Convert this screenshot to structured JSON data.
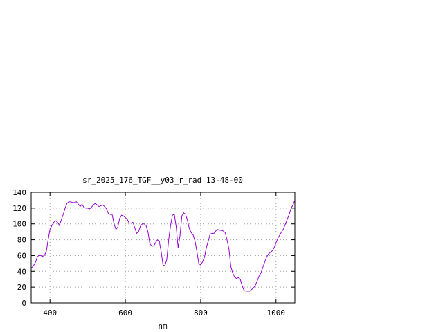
{
  "chart_data": {
    "type": "line",
    "title": "sr_2025_176_TGF__y03_r_rad 13-48-00",
    "xlabel": "nm",
    "ylabel": "",
    "xlim": [
      350,
      1050
    ],
    "ylim": [
      0,
      140
    ],
    "xticks": [
      400,
      600,
      800,
      1000
    ],
    "yticks": [
      0,
      20,
      40,
      60,
      80,
      100,
      120,
      140
    ],
    "grid": true,
    "series": [
      {
        "color": "#9400d3",
        "x": [
          350,
          356,
          362,
          366,
          370,
          375,
          380,
          385,
          390,
          395,
          400,
          405,
          410,
          415,
          420,
          425,
          430,
          435,
          440,
          445,
          450,
          455,
          460,
          465,
          470,
          475,
          480,
          485,
          490,
          495,
          500,
          505,
          510,
          515,
          520,
          525,
          530,
          535,
          540,
          545,
          550,
          555,
          560,
          565,
          570,
          575,
          580,
          585,
          590,
          595,
          600,
          605,
          610,
          615,
          620,
          625,
          630,
          635,
          640,
          645,
          650,
          655,
          660,
          665,
          670,
          675,
          680,
          685,
          690,
          695,
          700,
          705,
          710,
          715,
          720,
          725,
          730,
          735,
          740,
          745,
          750,
          755,
          760,
          765,
          770,
          775,
          780,
          785,
          790,
          795,
          800,
          805,
          810,
          815,
          820,
          825,
          830,
          835,
          840,
          845,
          850,
          855,
          860,
          865,
          870,
          875,
          880,
          885,
          890,
          895,
          900,
          905,
          910,
          915,
          920,
          925,
          930,
          935,
          940,
          945,
          950,
          955,
          960,
          965,
          970,
          975,
          980,
          985,
          990,
          995,
          1000,
          1005,
          1010,
          1015,
          1020,
          1025,
          1030,
          1035,
          1040,
          1045,
          1050
        ],
        "y": [
          44,
          47,
          52,
          58,
          60,
          60,
          59,
          60,
          65,
          80,
          93,
          98,
          102,
          104,
          102,
          98,
          105,
          112,
          120,
          126,
          128,
          128,
          127,
          127,
          128,
          125,
          122,
          125,
          121,
          120,
          120,
          119,
          121,
          124,
          126,
          124,
          122,
          123,
          124,
          122,
          119,
          113,
          112,
          112,
          100,
          93,
          96,
          107,
          111,
          110,
          108,
          106,
          101,
          101,
          102,
          95,
          88,
          90,
          97,
          100,
          100,
          98,
          90,
          75,
          72,
          72,
          76,
          80,
          78,
          65,
          48,
          47,
          55,
          80,
          98,
          111,
          112,
          96,
          70,
          85,
          110,
          114,
          112,
          104,
          94,
          89,
          86,
          78,
          65,
          50,
          48,
          52,
          58,
          70,
          78,
          87,
          88,
          88,
          91,
          93,
          92,
          92,
          91,
          89,
          80,
          68,
          46,
          38,
          33,
          31,
          32,
          30,
          22,
          16,
          15,
          15,
          15,
          17,
          19,
          22,
          28,
          34,
          38,
          45,
          52,
          58,
          62,
          64,
          66,
          70,
          76,
          82,
          86,
          90,
          94,
          100,
          106,
          112,
          120,
          124,
          130
        ]
      }
    ]
  }
}
